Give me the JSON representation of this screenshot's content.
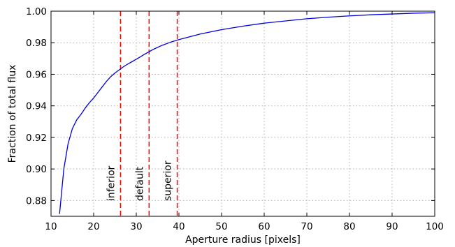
{
  "chart_data": {
    "type": "line",
    "title": "",
    "xlabel": "Aperture radius [pixels]",
    "ylabel": "Fraction of total flux",
    "xlim": [
      10,
      100
    ],
    "ylim": [
      0.87,
      1.0
    ],
    "x_ticks": [
      10,
      20,
      30,
      40,
      50,
      60,
      70,
      80,
      90,
      100
    ],
    "y_ticks": [
      0.88,
      0.9,
      0.92,
      0.94,
      0.96,
      0.98,
      1.0
    ],
    "x_tick_labels": [
      "10",
      "20",
      "30",
      "40",
      "50",
      "60",
      "70",
      "80",
      "90",
      "100"
    ],
    "y_tick_labels": [
      "0.88",
      "0.90",
      "0.92",
      "0.94",
      "0.96",
      "0.98",
      "1.00"
    ],
    "grid": true,
    "series": [
      {
        "color": "#0000dd",
        "x": [
          12,
          13,
          14,
          15,
          16,
          17,
          18,
          19,
          20,
          21,
          22,
          23,
          24,
          25,
          26,
          27,
          28,
          29,
          30,
          32,
          34,
          36,
          38,
          40,
          45,
          50,
          55,
          60,
          65,
          70,
          75,
          80,
          85,
          90,
          95,
          100
        ],
        "y": [
          0.8715,
          0.9,
          0.916,
          0.9255,
          0.931,
          0.9345,
          0.9385,
          0.942,
          0.945,
          0.9485,
          0.952,
          0.9555,
          0.9585,
          0.9608,
          0.9628,
          0.9648,
          0.9665,
          0.968,
          0.9695,
          0.9728,
          0.9758,
          0.9783,
          0.9803,
          0.982,
          0.9855,
          0.9883,
          0.9905,
          0.9924,
          0.9938,
          0.9952,
          0.9962,
          0.997,
          0.9977,
          0.9982,
          0.9987,
          0.999
        ]
      }
    ],
    "vlines": [
      {
        "x": 26.3,
        "label": "inferior",
        "color": "#ff0000"
      },
      {
        "x": 33.0,
        "label": "default",
        "color": "#ff0000"
      },
      {
        "x": 39.6,
        "label": "superior",
        "color": "#ff0000"
      }
    ]
  }
}
